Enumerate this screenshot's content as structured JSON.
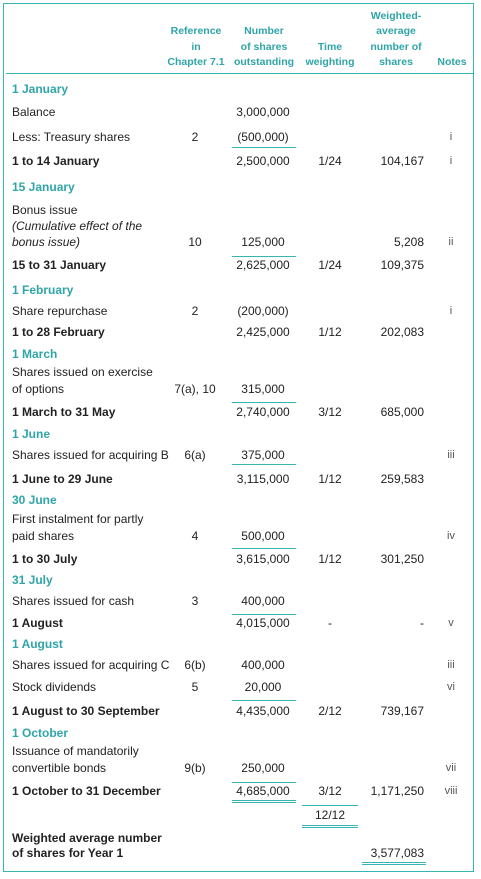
{
  "header": {
    "reference": [
      "Reference",
      "in",
      "Chapter 7.1"
    ],
    "shares": [
      "Number",
      "of shares",
      "outstanding"
    ],
    "time": [
      "Time",
      "weighting"
    ],
    "weighted": [
      "Weighted-",
      "average",
      "number of",
      "shares"
    ],
    "notes": "Notes"
  },
  "rows": [
    {
      "desc": "1 January",
      "style": "sec"
    },
    {
      "desc": "Balance",
      "shares": "3,000,000"
    },
    {
      "desc": "Less: Treasury shares",
      "ref": "2",
      "shares": "(500,000)",
      "notes": "i"
    },
    {
      "desc": "1 to 14 January",
      "style": "bold",
      "shares": "2,500,000",
      "time": "1/24",
      "weighted": "104,167",
      "notes": "i"
    },
    {
      "desc": "15 January",
      "style": "sec"
    },
    {
      "desc": "Bonus issue"
    },
    {
      "desc": "(Cumulative effect of the",
      "style": "it"
    },
    {
      "desc": "bonus issue)",
      "style": "it",
      "ref": "10",
      "shares": "125,000",
      "weighted": "5,208",
      "notes": "ii"
    },
    {
      "desc": "15 to 31 January",
      "style": "bold",
      "shares": "2,625,000",
      "time": "1/24",
      "weighted": "109,375"
    },
    {
      "desc": "1 February",
      "style": "sec"
    },
    {
      "desc": "Share repurchase",
      "ref": "2",
      "shares": "(200,000)",
      "notes": "i"
    },
    {
      "desc": "1 to 28 February",
      "style": "bold",
      "shares": "2,425,000",
      "time": "1/12",
      "weighted": "202,083"
    },
    {
      "desc": "1 March",
      "style": "sec"
    },
    {
      "desc": "Shares issued on exercise"
    },
    {
      "desc": "of options",
      "ref": "7(a), 10",
      "shares": "315,000"
    },
    {
      "desc": "1 March to 31 May",
      "style": "bold",
      "shares": "2,740,000",
      "time": "3/12",
      "weighted": "685,000"
    },
    {
      "desc": "1 June",
      "style": "sec"
    },
    {
      "desc": "Shares issued for acquiring B",
      "ref": "6(a)",
      "shares": "375,000",
      "notes": "iii"
    },
    {
      "desc": "1 June to 29 June",
      "style": "bold",
      "shares": "3,115,000",
      "time": "1/12",
      "weighted": "259,583"
    },
    {
      "desc": "30 June",
      "style": "sec"
    },
    {
      "desc": "First instalment for partly"
    },
    {
      "desc": "paid shares",
      "ref": "4",
      "shares": "500,000",
      "notes": "iv"
    },
    {
      "desc": "1 to 30 July",
      "style": "bold",
      "shares": "3,615,000",
      "time": "1/12",
      "weighted": "301,250"
    },
    {
      "desc": "31 July",
      "style": "sec"
    },
    {
      "desc": "Shares issued for cash",
      "ref": "3",
      "shares": "400,000"
    },
    {
      "desc": "1 August",
      "style": "bold",
      "shares": "4,015,000",
      "time": "-",
      "weighted": "-",
      "notes": "v"
    },
    {
      "desc": "1 August",
      "style": "sec"
    },
    {
      "desc": "Shares issued for acquiring C",
      "ref": "6(b)",
      "shares": "400,000",
      "notes": "iii"
    },
    {
      "desc": "Stock dividends",
      "ref": "5",
      "shares": "20,000",
      "notes": "vi"
    },
    {
      "desc": "1 August to 30 September",
      "style": "bold",
      "shares": "4,435,000",
      "time": "2/12",
      "weighted": "739,167"
    },
    {
      "desc": "1 October",
      "style": "sec"
    },
    {
      "desc": "Issuance of mandatorily"
    },
    {
      "desc": "convertible bonds",
      "ref": "9(b)",
      "shares": "250,000",
      "notes": "vii"
    },
    {
      "desc": "1 October to 31 December",
      "style": "bold",
      "shares": "4,685,000",
      "time": "3/12",
      "weighted": "1,171,250",
      "notes": "viii"
    },
    {
      "desc": "",
      "time": "12/12"
    },
    {
      "desc": "Weighted average number",
      "style": "bold"
    },
    {
      "desc": "of shares for Year 1",
      "style": "bold",
      "weighted": "3,577,083"
    }
  ]
}
